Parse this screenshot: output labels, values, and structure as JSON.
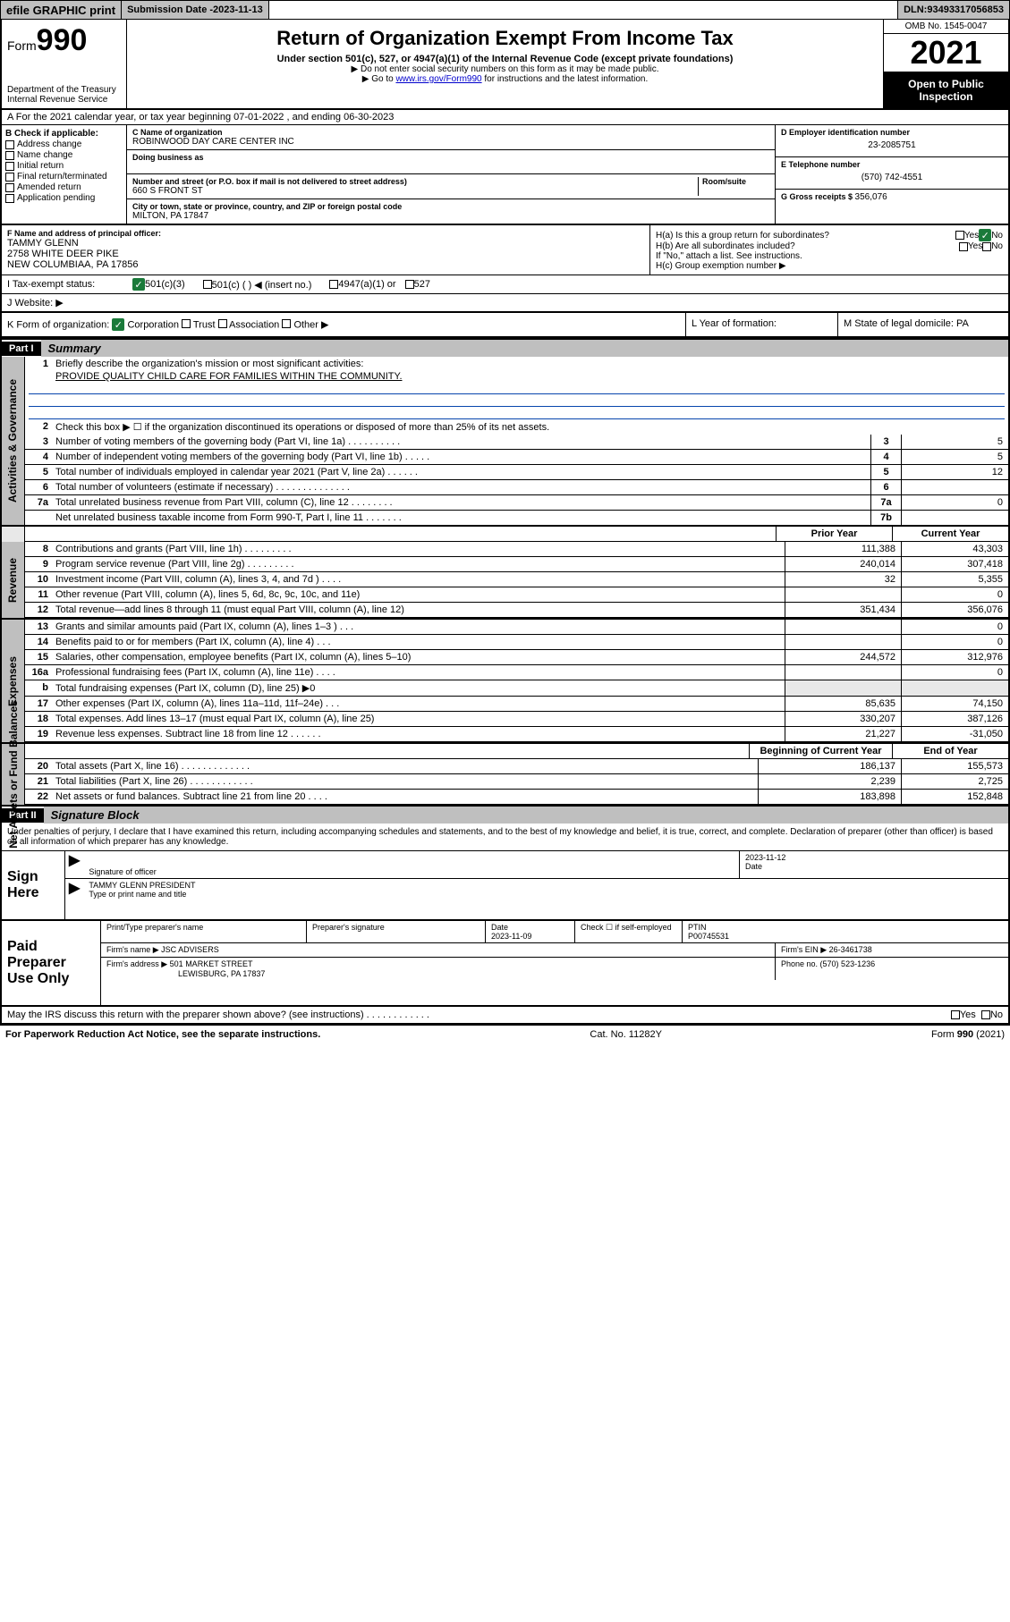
{
  "topbar": {
    "efile": "efile GRAPHIC print",
    "submission_label": "Submission Date - ",
    "submission_date": "2023-11-13",
    "dln_label": "DLN: ",
    "dln": "93493317056853"
  },
  "header": {
    "form_prefix": "Form",
    "form_no": "990",
    "dept1": "Department of the Treasury",
    "dept2": "Internal Revenue Service",
    "title": "Return of Organization Exempt From Income Tax",
    "sub": "Under section 501(c), 527, or 4947(a)(1) of the Internal Revenue Code (except private foundations)",
    "note1": "▶ Do not enter social security numbers on this form as it may be made public.",
    "note2_pre": "▶ Go to ",
    "note2_link": "www.irs.gov/Form990",
    "note2_post": " for instructions and the latest information.",
    "omb": "OMB No. 1545-0047",
    "year": "2021",
    "open": "Open to Public Inspection"
  },
  "line_a": "A For the 2021 calendar year, or tax year beginning 07-01-2022   , and ending 06-30-2023",
  "col_b": {
    "hdr": "B Check if applicable:",
    "items": [
      "Address change",
      "Name change",
      "Initial return",
      "Final return/terminated",
      "Amended return",
      "Application pending"
    ]
  },
  "col_c": {
    "name_lbl": "C Name of organization",
    "name": "ROBINWOOD DAY CARE CENTER INC",
    "dba_lbl": "Doing business as",
    "addr_lbl": "Number and street (or P.O. box if mail is not delivered to street address)",
    "room_lbl": "Room/suite",
    "addr": "660 S FRONT ST",
    "city_lbl": "City or town, state or province, country, and ZIP or foreign postal code",
    "city": "MILTON, PA  17847"
  },
  "col_de": {
    "d_lbl": "D Employer identification number",
    "ein": "23-2085751",
    "e_lbl": "E Telephone number",
    "phone": "(570) 742-4551",
    "g_lbl": "G Gross receipts $ ",
    "gross": "356,076"
  },
  "row_f": {
    "lbl": "F  Name and address of principal officer:",
    "name": "TAMMY GLENN",
    "addr1": "2758 WHITE DEER PIKE",
    "addr2": "NEW COLUMBIAA, PA  17856"
  },
  "row_h": {
    "ha": "H(a)  Is this a group return for subordinates?",
    "hb": "H(b)  Are all subordinates included?",
    "hb_note": "If \"No,\" attach a list. See instructions.",
    "hc": "H(c)  Group exemption number ▶",
    "yes": "Yes",
    "no": "No"
  },
  "row_i": {
    "lbl": "I    Tax-exempt status:",
    "o1": "501(c)(3)",
    "o2": "501(c) (  ) ◀ (insert no.)",
    "o3": "4947(a)(1) or",
    "o4": "527"
  },
  "row_j": {
    "lbl": "J    Website: ▶"
  },
  "row_k": {
    "k": "K Form of organization:",
    "corp": "Corporation",
    "trust": "Trust",
    "assoc": "Association",
    "other": "Other ▶",
    "l": "L Year of formation:",
    "m": "M State of legal domicile: PA"
  },
  "part1": {
    "hdr": "Part I",
    "title": "Summary"
  },
  "summary": {
    "l1": "Briefly describe the organization's mission or most significant activities:",
    "l1v": "PROVIDE QUALITY CHILD CARE FOR FAMILIES WITHIN THE COMMUNITY.",
    "l2": "Check this box ▶ ☐  if the organization discontinued its operations or disposed of more than 25% of its net assets.",
    "l3": "Number of voting members of the governing body (Part VI, line 1a)   .   .   .   .   .   .   .   .   .   .",
    "l4": "Number of independent voting members of the governing body (Part VI, line 1b)   .   .   .   .   .",
    "l5": "Total number of individuals employed in calendar year 2021 (Part V, line 2a)   .   .   .   .   .   .",
    "l6": "Total number of volunteers (estimate if necessary)   .   .   .   .   .   .   .   .   .   .   .   .   .   .",
    "l7a": "Total unrelated business revenue from Part VIII, column (C), line 12  .   .   .   .   .   .   .   .",
    "l7b": "Net unrelated business taxable income from Form 990-T, Part I, line 11  .   .   .   .   .   .   .",
    "v3": "5",
    "v4": "5",
    "v5": "12",
    "v6": "",
    "v7a": "0",
    "v7b": ""
  },
  "financials": {
    "py_hdr": "Prior Year",
    "cy_hdr": "Current Year",
    "rows": [
      {
        "n": "8",
        "t": "Contributions and grants (Part VIII, line 1h)   .   .   .   .   .   .   .   .   .",
        "py": "111,388",
        "cy": "43,303"
      },
      {
        "n": "9",
        "t": "Program service revenue (Part VIII, line 2g)   .   .   .   .   .   .   .   .   .",
        "py": "240,014",
        "cy": "307,418"
      },
      {
        "n": "10",
        "t": "Investment income (Part VIII, column (A), lines 3, 4, and 7d )   .   .   .   .",
        "py": "32",
        "cy": "5,355"
      },
      {
        "n": "11",
        "t": "Other revenue (Part VIII, column (A), lines 5, 6d, 8c, 9c, 10c, and 11e)",
        "py": "",
        "cy": "0"
      },
      {
        "n": "12",
        "t": "Total revenue—add lines 8 through 11 (must equal Part VIII, column (A), line 12)",
        "py": "351,434",
        "cy": "356,076"
      },
      {
        "n": "13",
        "t": "Grants and similar amounts paid (Part IX, column (A), lines 1–3 )   .   .   .",
        "py": "",
        "cy": "0"
      },
      {
        "n": "14",
        "t": "Benefits paid to or for members (Part IX, column (A), line 4)   .   .   .",
        "py": "",
        "cy": "0"
      },
      {
        "n": "15",
        "t": "Salaries, other compensation, employee benefits (Part IX, column (A), lines 5–10)",
        "py": "244,572",
        "cy": "312,976"
      },
      {
        "n": "16a",
        "t": "Professional fundraising fees (Part IX, column (A), line 11e)   .   .   .   .",
        "py": "",
        "cy": "0"
      },
      {
        "n": "b",
        "t": "Total fundraising expenses (Part IX, column (D), line 25) ▶0",
        "py": "",
        "cy": ""
      },
      {
        "n": "17",
        "t": "Other expenses (Part IX, column (A), lines 11a–11d, 11f–24e)   .   .   .",
        "py": "85,635",
        "cy": "74,150"
      },
      {
        "n": "18",
        "t": "Total expenses. Add lines 13–17 (must equal Part IX, column (A), line 25)",
        "py": "330,207",
        "cy": "387,126"
      },
      {
        "n": "19",
        "t": "Revenue less expenses. Subtract line 18 from line 12   .   .   .   .   .   .",
        "py": "21,227",
        "cy": "-31,050"
      }
    ],
    "boc_hdr": "Beginning of Current Year",
    "eoy_hdr": "End of Year",
    "net_rows": [
      {
        "n": "20",
        "t": "Total assets (Part X, line 16)   .   .   .   .   .   .   .   .   .   .   .   .   .",
        "py": "186,137",
        "cy": "155,573"
      },
      {
        "n": "21",
        "t": "Total liabilities (Part X, line 26)   .   .   .   .   .   .   .   .   .   .   .   .",
        "py": "2,239",
        "cy": "2,725"
      },
      {
        "n": "22",
        "t": "Net assets or fund balances. Subtract line 21 from line 20   .   .   .   .",
        "py": "183,898",
        "cy": "152,848"
      }
    ]
  },
  "sides": {
    "act": "Activities & Governance",
    "rev": "Revenue",
    "exp": "Expenses",
    "net": "Net Assets or Fund Balances"
  },
  "part2": {
    "hdr": "Part II",
    "title": "Signature Block"
  },
  "sig": {
    "decl": "Under penalties of perjury, I declare that I have examined this return, including accompanying schedules and statements, and to the best of my knowledge and belief, it is true, correct, and complete. Declaration of preparer (other than officer) is based on all information of which preparer has any knowledge.",
    "sign_here": "Sign Here",
    "sig_of": "Signature of officer",
    "date": "Date",
    "sig_date": "2023-11-12",
    "officer": "TAMMY GLENN PRESIDENT",
    "type_name": "Type or print name and title",
    "paid": "Paid Preparer Use Only",
    "prep_name_lbl": "Print/Type preparer's name",
    "prep_sig_lbl": "Preparer's signature",
    "prep_date_lbl": "Date",
    "prep_date": "2023-11-09",
    "check_if": "Check ☐ if self-employed",
    "ptin_lbl": "PTIN",
    "ptin": "P00745531",
    "firm_name_lbl": "Firm's name    ▶",
    "firm_name": "JSC ADVISERS",
    "firm_ein_lbl": "Firm's EIN ▶",
    "firm_ein": "26-3461738",
    "firm_addr_lbl": "Firm's address ▶",
    "firm_addr1": "501 MARKET STREET",
    "firm_addr2": "LEWISBURG, PA  17837",
    "phone_lbl": "Phone no. ",
    "phone": "(570) 523-1236",
    "discuss": "May the IRS discuss this return with the preparer shown above? (see instructions)   .   .   .   .   .   .   .   .   .   .   .   ."
  },
  "footer": {
    "l": "For Paperwork Reduction Act Notice, see the separate instructions.",
    "c": "Cat. No. 11282Y",
    "r": "Form 990 (2021)"
  }
}
